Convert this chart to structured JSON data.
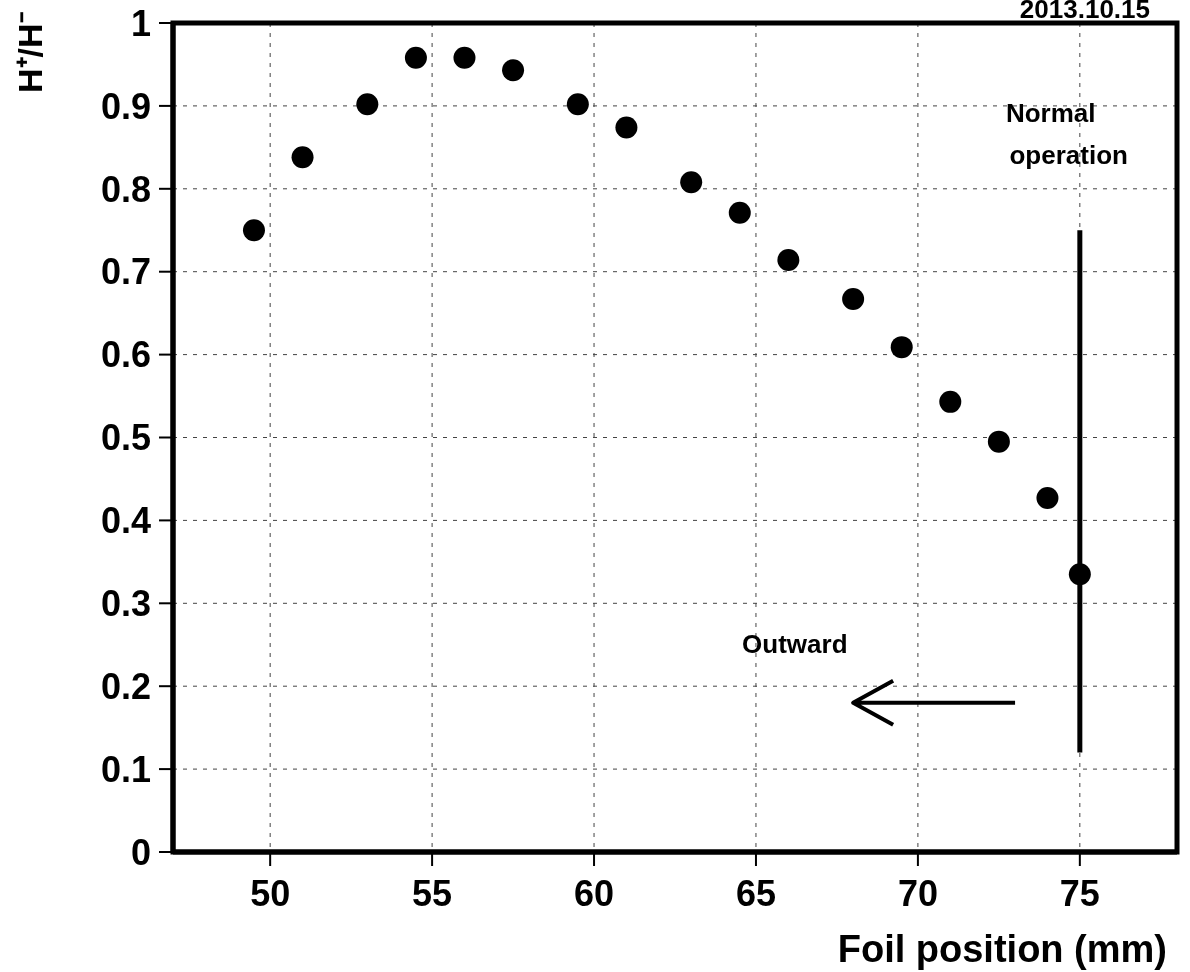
{
  "chart_data": {
    "type": "scatter",
    "title": "2013.10.15",
    "xlabel": "Foil position (mm)",
    "ylabel": "H⁺/H⁻",
    "x": [
      49.5,
      51,
      53,
      54.5,
      56,
      57.5,
      59.5,
      61,
      63,
      64.5,
      66,
      68,
      69.5,
      71,
      72.5,
      74,
      75
    ],
    "series": [
      {
        "color": "#000000",
        "values": [
          0.75,
          0.838,
          0.902,
          0.958,
          0.958,
          0.943,
          0.902,
          0.874,
          0.808,
          0.771,
          0.714,
          0.667,
          0.609,
          0.543,
          0.495,
          0.427,
          0.335
        ],
        "errors": [
          null,
          null,
          null,
          null,
          null,
          null,
          null,
          null,
          null,
          null,
          null,
          null,
          null,
          null,
          null,
          null,
          [
            0.12,
            0.75
          ]
        ]
      }
    ],
    "annotations": [
      "Normal operation",
      "Outward"
    ],
    "xlim": [
      47,
      78
    ],
    "xticks": [
      50,
      55,
      60,
      65,
      70,
      75
    ],
    "ylim": [
      0,
      1
    ],
    "yticks": [
      0,
      0.1,
      0.2,
      0.3,
      0.4,
      0.5,
      0.6,
      0.7,
      0.8,
      0.9,
      1
    ],
    "grid": true,
    "marker": "circle"
  }
}
